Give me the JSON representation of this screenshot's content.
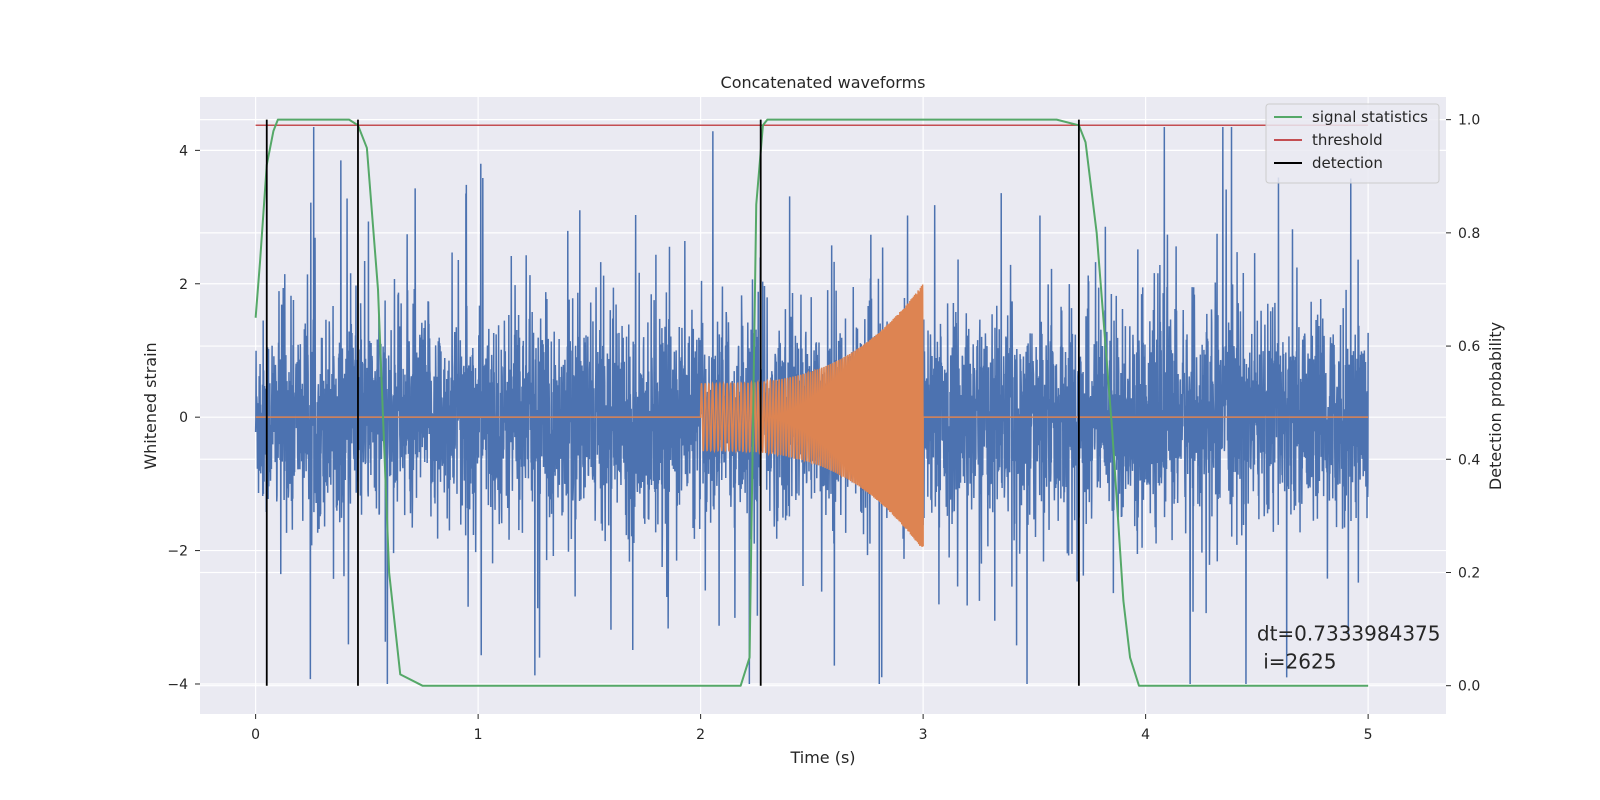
{
  "chart_data": {
    "type": "line",
    "title": "Concatenated waveforms",
    "xlabel": "Time (s)",
    "ylabel": "Whitened strain",
    "y2label": "Detection probability",
    "xlim": [
      -0.25,
      5.35
    ],
    "ylim": [
      -4.45,
      4.8
    ],
    "y2lim": [
      -0.05,
      1.04
    ],
    "xticks": [
      0,
      1,
      2,
      3,
      4,
      5
    ],
    "xtick_labels": [
      "0",
      "1",
      "2",
      "3",
      "4",
      "5"
    ],
    "yticks": [
      -4,
      -2,
      0,
      2,
      4
    ],
    "ytick_labels": [
      "−4",
      "−2",
      "0",
      "2",
      "4"
    ],
    "y2ticks": [
      0.0,
      0.2,
      0.4,
      0.6,
      0.8,
      1.0
    ],
    "y2tick_labels": [
      "0.0",
      "0.2",
      "0.4",
      "0.6",
      "0.8",
      "1.0"
    ],
    "grid": true,
    "legend_position": "top-right",
    "series": [
      {
        "name": "",
        "role": "strain-noise",
        "axis": "left",
        "color": "#4c72b0",
        "x_range": [
          0,
          5
        ],
        "approx_amplitude": 1.3,
        "max_value": 4.35,
        "min_value": -4.0
      },
      {
        "name": "",
        "role": "injected-chirp",
        "axis": "left",
        "color": "#dd8452",
        "x_range": [
          0,
          5
        ],
        "chirp_start": 2.0,
        "chirp_end": 3.0,
        "amplitude_start": 0.5,
        "amplitude_end": 2.0
      },
      {
        "name": "signal statistics",
        "axis": "right",
        "color": "#55a868",
        "x": [
          0.0,
          0.02,
          0.05,
          0.08,
          0.1,
          0.15,
          0.3,
          0.42,
          0.46,
          0.5,
          0.55,
          0.6,
          0.65,
          0.75,
          1.0,
          1.5,
          2.0,
          2.18,
          2.22,
          2.25,
          2.28,
          2.3,
          2.4,
          3.0,
          3.6,
          3.7,
          3.73,
          3.78,
          3.85,
          3.9,
          3.93,
          3.97,
          4.2,
          4.5,
          5.0
        ],
        "y": [
          0.65,
          0.75,
          0.92,
          0.98,
          1.0,
          1.0,
          1.0,
          1.0,
          0.99,
          0.95,
          0.7,
          0.2,
          0.02,
          0.0,
          0.0,
          0.0,
          0.0,
          0.0,
          0.05,
          0.85,
          0.99,
          1.0,
          1.0,
          1.0,
          1.0,
          0.99,
          0.96,
          0.8,
          0.45,
          0.15,
          0.05,
          0.0,
          0.0,
          0.0,
          0.0
        ]
      },
      {
        "name": "threshold",
        "axis": "right",
        "color": "#c44e52",
        "x": [
          0,
          5
        ],
        "y": [
          0.99,
          0.99
        ]
      },
      {
        "name": "detection",
        "axis": "right",
        "color": "#000000",
        "type": "vlines",
        "x": [
          0.05,
          0.46,
          2.27,
          3.7
        ],
        "ymin": 0.0,
        "ymax": 1.0
      }
    ],
    "annotation": {
      "line1": "dt=0.7333984375",
      "line2": " i=2625",
      "x": 4.5,
      "y": -3.5
    }
  }
}
